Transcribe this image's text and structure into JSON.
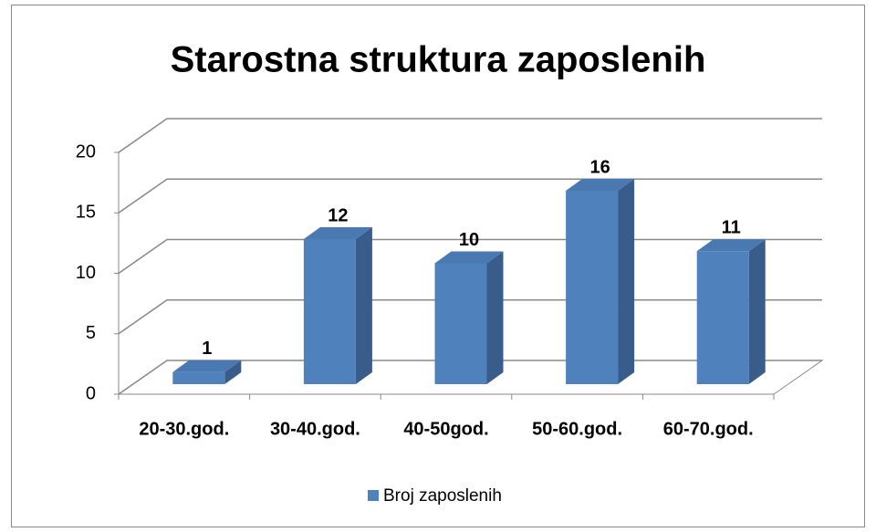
{
  "chart_data": {
    "type": "bar",
    "title": "Starostna struktura zaposlenih",
    "categories": [
      "20-30.god.",
      "30-40.god.",
      "40-50god.",
      "50-60.god.",
      "60-70.god."
    ],
    "series": [
      {
        "name": "Broj zaposlenih",
        "color": "#4f81bd",
        "values": [
          1,
          12,
          10,
          16,
          11
        ]
      }
    ],
    "ylim": [
      0,
      20
    ],
    "yticks": [
      0,
      5,
      10,
      15,
      20
    ],
    "grid": true,
    "legend": "bottom"
  }
}
